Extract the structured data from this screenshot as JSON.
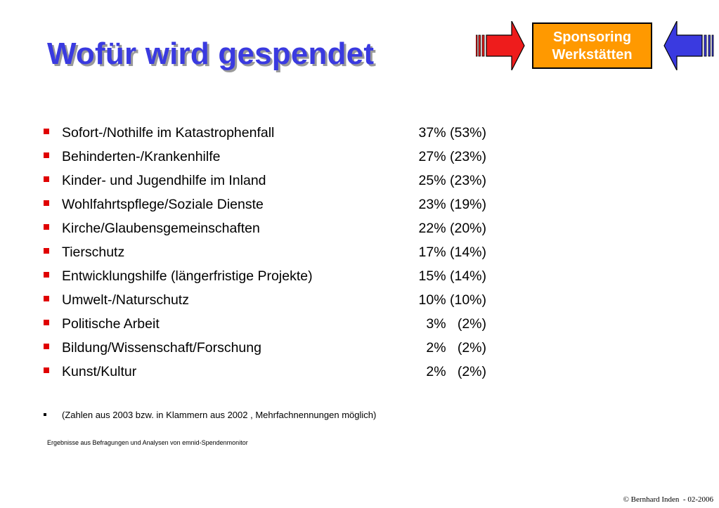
{
  "title": "Wofür wird gespendet",
  "nav": {
    "sponsor_line1": "Sponsoring",
    "sponsor_line2": "Werkstätten",
    "back_icon": "red-arrow-right-icon",
    "forward_icon": "blue-arrow-left-icon",
    "colors": {
      "back_arrow": "#ee1c1c",
      "forward_arrow": "#3a3ae0",
      "sponsor_box": "#ff9900"
    }
  },
  "items": [
    {
      "label": "Sofort-/Nothilfe im Katastrophenfall",
      "value": "37% (53%)"
    },
    {
      "label": "Behinderten-/Krankenhilfe",
      "value": "27% (23%)"
    },
    {
      "label": "Kinder- und Jugendhilfe im Inland",
      "value": "25% (23%)"
    },
    {
      "label": "Wohlfahrtspflege/Soziale Dienste",
      "value": "23% (19%)"
    },
    {
      "label": "Kirche/Glaubensgemeinschaften",
      "value": "22% (20%)"
    },
    {
      "label": "Tierschutz",
      "value": "17% (14%)"
    },
    {
      "label": "Entwicklungshilfe (längerfristige Projekte)",
      "value": "15% (14%)"
    },
    {
      "label": "Umwelt-/Naturschutz",
      "value": "10% (10%)"
    },
    {
      "label": "Politische Arbeit",
      "value": "3%   (2%)"
    },
    {
      "label": "Bildung/Wissenschaft/Forschung",
      "value": "2%   (2%)"
    },
    {
      "label": "Kunst/Kultur",
      "value": "2%   (2%)"
    }
  ],
  "note": "(Zahlen aus 2003 bzw. in Klammern aus 2002 , Mehrfachnennungen möglich)",
  "source": "Ergebnisse aus  Befragungen und Analysen von emnid-Spendenmonitor",
  "copyright": "© Bernhard Inden  - 02-2006",
  "colors": {
    "title": "#3a3ae0",
    "bullet": "#e00000"
  }
}
